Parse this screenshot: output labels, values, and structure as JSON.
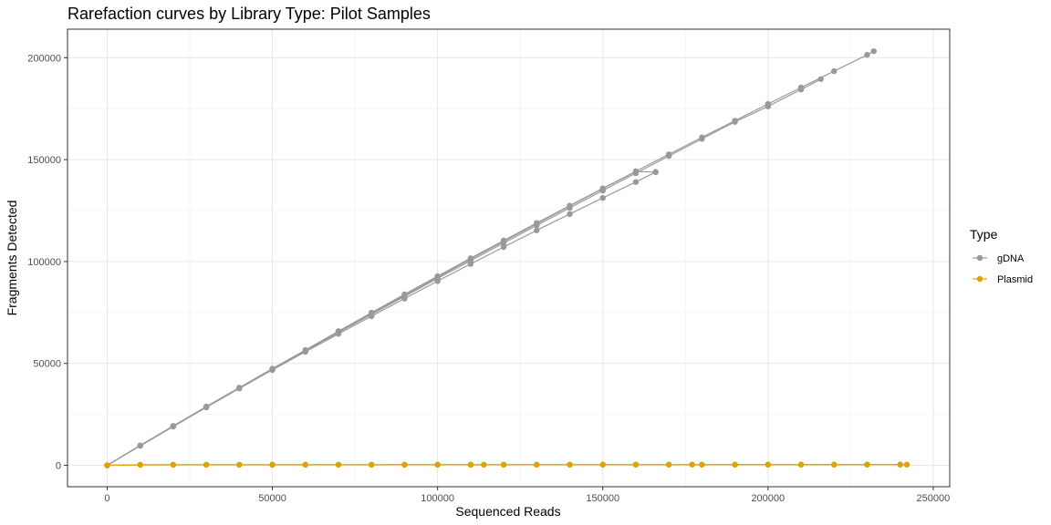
{
  "chart_data": {
    "type": "line",
    "title": "Rarefaction curves by Library Type: Pilot Samples",
    "xlabel": "Sequenced Reads",
    "ylabel": "Fragments Detected",
    "xlim": [
      -12000,
      255000
    ],
    "ylim": [
      -10500,
      214000
    ],
    "x_ticks": [
      0,
      50000,
      100000,
      150000,
      200000,
      250000
    ],
    "y_ticks": [
      0,
      50000,
      100000,
      150000,
      200000
    ],
    "grid": true,
    "legend": {
      "title": "Type",
      "placement": "right",
      "entries": [
        {
          "label": "gDNA",
          "color": "#999999"
        },
        {
          "label": "Plasmid",
          "color": "#E69F00"
        }
      ]
    },
    "series": [
      {
        "type": "gDNA",
        "color": "#999999",
        "x": [
          0,
          10000,
          20000,
          30000,
          40000,
          50000,
          60000,
          70000,
          80000,
          90000,
          100000,
          110000,
          120000,
          130000,
          140000,
          150000,
          160000,
          170000,
          180000,
          190000,
          200000,
          210000,
          220000,
          230000,
          232000
        ],
        "y": [
          0,
          9700,
          19300,
          28800,
          38100,
          47400,
          56600,
          65800,
          74900,
          83900,
          92800,
          101600,
          110300,
          118900,
          127400,
          135900,
          144300,
          152600,
          160900,
          169100,
          177300,
          185400,
          193400,
          201400,
          203200
        ]
      },
      {
        "type": "gDNA",
        "color": "#999999",
        "x": [
          0,
          10000,
          20000,
          30000,
          40000,
          50000,
          60000,
          70000,
          80000,
          90000,
          100000,
          110000,
          120000,
          130000,
          140000,
          150000,
          160000,
          170000,
          180000,
          190000,
          200000,
          210000,
          216000
        ],
        "y": [
          0,
          9600,
          19100,
          28600,
          37900,
          47100,
          56200,
          65200,
          74100,
          82900,
          91700,
          100400,
          109100,
          117700,
          126300,
          134800,
          143300,
          151800,
          160200,
          168500,
          176100,
          184400,
          189500
        ]
      },
      {
        "type": "gDNA",
        "color": "#999999",
        "x": [
          0,
          10000,
          20000,
          30000,
          40000,
          50000,
          60000,
          70000,
          80000,
          90000,
          100000,
          110000,
          120000,
          130000,
          140000,
          150000,
          160000,
          166000
        ],
        "y": [
          0,
          9700,
          19300,
          28800,
          38000,
          47300,
          56400,
          65500,
          74400,
          83400,
          92300,
          101200,
          109900,
          118500,
          127200,
          135700,
          144100,
          143900
        ]
      },
      {
        "type": "gDNA",
        "color": "#999999",
        "x": [
          0,
          10000,
          20000,
          30000,
          40000,
          50000,
          60000,
          70000,
          80000,
          90000,
          100000,
          110000,
          120000,
          130000,
          140000,
          150000,
          160000,
          166000
        ],
        "y": [
          0,
          9600,
          19000,
          28400,
          37700,
          46800,
          55700,
          64500,
          73200,
          81800,
          90400,
          98800,
          107100,
          115300,
          123300,
          131200,
          139000,
          143900
        ]
      },
      {
        "type": "Plasmid",
        "color": "#E69F00",
        "x": [
          0,
          10000,
          20000,
          30000,
          40000,
          50000,
          60000,
          70000,
          80000,
          90000,
          100000,
          110000,
          114000,
          120000,
          130000,
          140000,
          150000,
          160000,
          170000,
          177000,
          180000,
          190000,
          200000,
          210000,
          220000,
          230000,
          240000,
          242000
        ],
        "y": [
          0,
          250,
          270,
          280,
          290,
          300,
          300,
          310,
          310,
          320,
          320,
          320,
          320,
          330,
          330,
          330,
          340,
          340,
          340,
          340,
          340,
          350,
          350,
          350,
          350,
          360,
          360,
          360
        ]
      },
      {
        "type": "Plasmid",
        "color": "#E69F00",
        "x": [
          0,
          10000,
          20000,
          30000,
          40000,
          50000,
          60000,
          70000,
          80000,
          90000,
          100000,
          110000,
          120000,
          130000,
          140000,
          150000,
          160000,
          170000,
          180000,
          190000,
          200000,
          210000,
          220000,
          230000,
          240000
        ],
        "y": [
          0,
          240,
          260,
          270,
          280,
          290,
          290,
          300,
          300,
          310,
          310,
          310,
          320,
          320,
          320,
          330,
          330,
          330,
          330,
          340,
          340,
          340,
          340,
          350,
          350
        ]
      }
    ]
  }
}
